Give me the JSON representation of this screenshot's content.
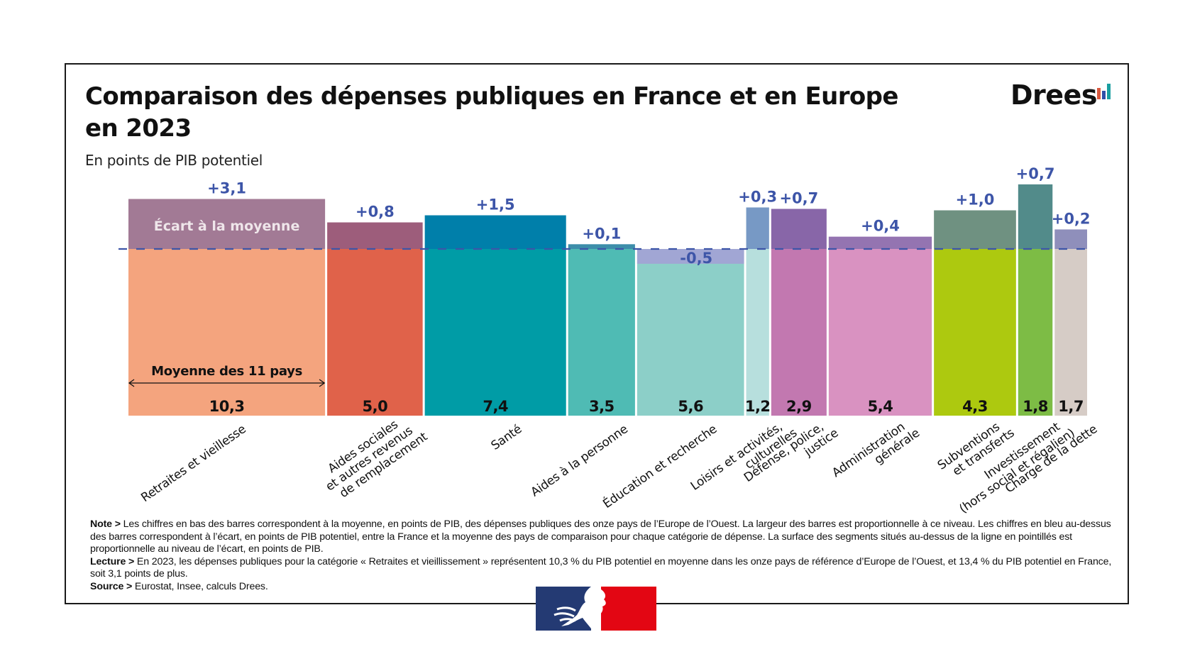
{
  "header": {
    "title_line1": "Comparaison des dépenses publiques en France et en Europe",
    "title_line2": "en 2023",
    "subtitle": "En points de PIB potentiel",
    "logo_text": "Drees",
    "logo_bar_colors": [
      "#d9593f",
      "#2f4fa8",
      "#1a9ea0"
    ]
  },
  "chart_data": {
    "type": "bar",
    "variant": "variable-width (marimekko-style) bars with gap segments above/below an average line",
    "title": "Comparaison des dépenses publiques en France et en Europe en 2023",
    "subtitle": "En points de PIB potentiel",
    "categories": [
      "Retraites et vieillesse",
      "Aides sociales et autres revenus de remplacement",
      "Santé",
      "Aides à la personne",
      "Éducation et recherche",
      "Loisirs et activités culturelles",
      "Défense, police, justice",
      "Administration générale",
      "Subventions et transferts",
      "Investissement (hors social et régalien)",
      "Charge de la dette"
    ],
    "category_label_lines": [
      [
        "Retraites et vieillesse"
      ],
      [
        "Aides sociales",
        "et autres revenus",
        "de remplacement"
      ],
      [
        "Santé"
      ],
      [
        "Aides à la personne"
      ],
      [
        "Éducation et recherche"
      ],
      [
        "Loisirs et activités,",
        "culturelles"
      ],
      [
        "Défense, police,",
        "justice"
      ],
      [
        "Administration",
        "générale"
      ],
      [
        "Subventions",
        "et transferts"
      ],
      [
        "Investissement",
        "(hors social et régalien)"
      ],
      [
        "Charge de la dette"
      ]
    ],
    "series": [
      {
        "name": "Moyenne des 11 pays",
        "values": [
          10.3,
          5.0,
          7.4,
          3.5,
          5.6,
          1.2,
          2.9,
          5.4,
          4.3,
          1.8,
          1.7
        ],
        "labels": [
          "10,3",
          "5,0",
          "7,4",
          "3,5",
          "5,6",
          "1,2",
          "2,9",
          "5,4",
          "4,3",
          "1,8",
          "1,7"
        ],
        "colors": [
          "#f4a47e",
          "#e0624a",
          "#009ca6",
          "#4fbbb4",
          "#8ccfc8",
          "#b7dfdd",
          "#c278b0",
          "#d992c1",
          "#adc90f",
          "#7dbc45",
          "#d6ccc6"
        ]
      },
      {
        "name": "Écart à la moyenne",
        "values": [
          3.1,
          0.8,
          1.5,
          0.1,
          -0.5,
          0.3,
          0.7,
          0.4,
          1.0,
          0.7,
          0.2
        ],
        "labels": [
          "+3,1",
          "+0,8",
          "+1,5",
          "+0,1",
          "-0,5",
          "+0,3",
          "+0,7",
          "+0,4",
          "+1,0",
          "+0,7",
          "+0,2"
        ],
        "colors": [
          "#a27a95",
          "#9d5d7b",
          "#007faa",
          "#3d8eaa",
          "#a1a6d4",
          "#7799c5",
          "#8866a8",
          "#9474b1",
          "#6f9181",
          "#528b8a",
          "#8f8fbb"
        ]
      }
    ],
    "annotations": {
      "gap_label": "Écart à la moyenne",
      "average_label": "Moyenne des 11 pays"
    },
    "label_color": "#3d55a8",
    "reference_line": {
      "style": "dashed",
      "meaning": "niveau de la moyenne des 11 pays",
      "color": "#3d55a8"
    },
    "xlabel": "",
    "ylabel": "",
    "grid": false,
    "legend": "none"
  },
  "footer": {
    "note_label": "Note >",
    "note_text": " Les chiffres en bas des barres correspondent à la moyenne, en points de PIB, des dépenses publiques des onze pays de l’Europe de l’Ouest. La largeur des barres est proportionnelle à ce niveau. Les chiffres en bleu au-dessus des barres correspondent à l’écart, en points de PIB potentiel, entre la France et la moyenne des pays de comparaison pour chaque catégorie de dépense. La surface des segments situés au-dessus de la ligne en pointillés est proportionnelle au niveau de l’écart, en points de PIB.",
    "lecture_label": "Lecture >",
    "lecture_text": " En 2023, les dépenses publiques pour la catégorie « Retraites et vieillissement » représentent 10,3 % du PIB potentiel en moyenne dans les onze pays de référence d’Europe de l’Ouest, et 13,4 % du PIB potentiel en France, soit 3,1 points de plus.",
    "source_label": "Source >",
    "source_text": " Eurostat,  Insee, calculs Drees."
  },
  "marianne_colors": [
    "#243a73",
    "#e30613"
  ]
}
